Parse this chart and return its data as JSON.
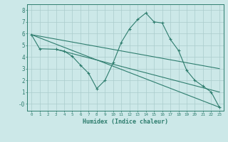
{
  "xlabel": "Humidex (Indice chaleur)",
  "xlim": [
    -0.5,
    23.5
  ],
  "ylim": [
    -0.6,
    8.5
  ],
  "xticks": [
    0,
    1,
    2,
    3,
    4,
    5,
    6,
    7,
    8,
    9,
    10,
    11,
    12,
    13,
    14,
    15,
    16,
    17,
    18,
    19,
    20,
    21,
    22,
    23
  ],
  "yticks": [
    0,
    1,
    2,
    3,
    4,
    5,
    6,
    7,
    8
  ],
  "ytick_labels": [
    "-0",
    "1",
    "2",
    "3",
    "4",
    "5",
    "6",
    "7",
    "8"
  ],
  "bg_color": "#cce8e8",
  "grid_color": "#aacccc",
  "line_color": "#2e7d6e",
  "line1_x": [
    0,
    1,
    3,
    4,
    5,
    6,
    7,
    8,
    9,
    10,
    11,
    12,
    13,
    14,
    15,
    16,
    17,
    18,
    19,
    20,
    21,
    22,
    23
  ],
  "line1_y": [
    5.9,
    4.7,
    4.65,
    4.5,
    4.05,
    3.3,
    2.6,
    1.3,
    2.0,
    3.5,
    5.25,
    6.4,
    7.2,
    7.75,
    7.0,
    6.9,
    5.5,
    4.55,
    2.85,
    2.0,
    1.5,
    1.0,
    -0.3
  ],
  "line2_x": [
    0,
    23
  ],
  "line2_y": [
    5.9,
    -0.3
  ],
  "line3_x": [
    0,
    23
  ],
  "line3_y": [
    5.9,
    3.0
  ],
  "line4_x": [
    3,
    23
  ],
  "line4_y": [
    4.65,
    1.0
  ]
}
